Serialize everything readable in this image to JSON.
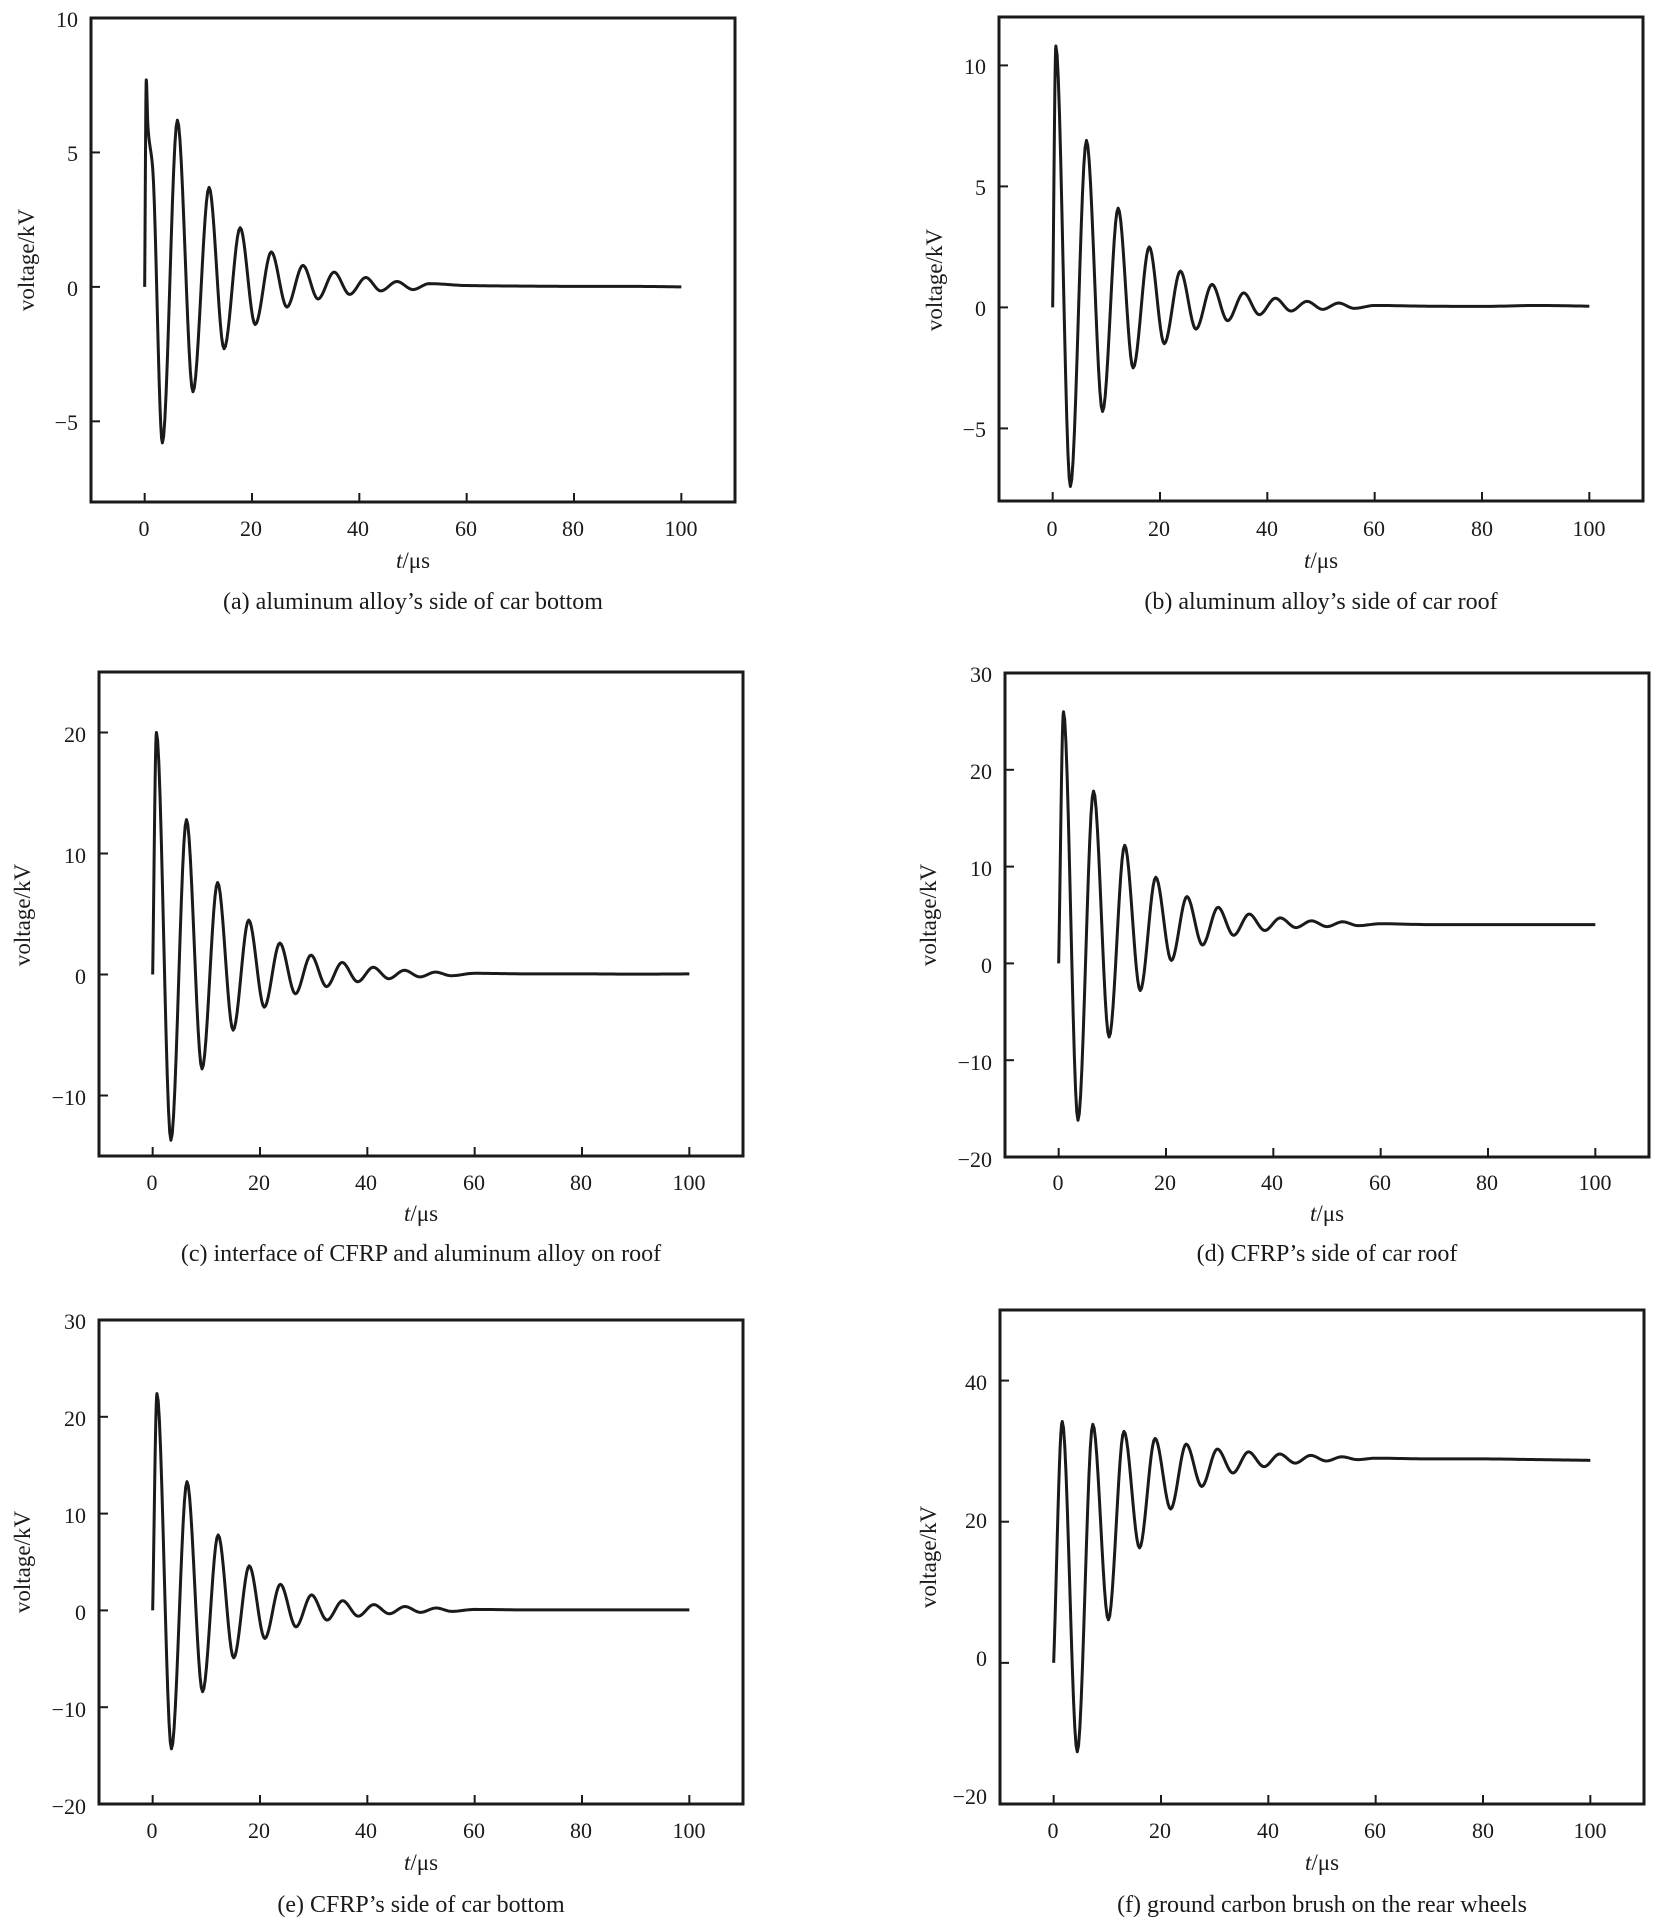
{
  "figure": {
    "panels": [
      {
        "id": "a",
        "caption": "(a) aluminum alloy’s side of car bottom",
        "ylabel": "voltage/kV",
        "xlabel_italic": "t",
        "xlabel_rest": "/μs",
        "xticks": [
          "0",
          "20",
          "40",
          "60",
          "80",
          "100"
        ],
        "yticks": [
          "10",
          "5",
          "0",
          "−5"
        ]
      },
      {
        "id": "b",
        "caption": "(b) aluminum alloy’s side of car roof",
        "ylabel": "voltage/kV",
        "xlabel_italic": "t",
        "xlabel_rest": "/μs",
        "xticks": [
          "0",
          "20",
          "40",
          "60",
          "80",
          "100"
        ],
        "yticks": [
          "10",
          "5",
          "0",
          "−5"
        ]
      },
      {
        "id": "c",
        "caption": "(c) interface of CFRP and aluminum alloy on roof",
        "ylabel": "voltage/kV",
        "xlabel_italic": "t",
        "xlabel_rest": "/μs",
        "xticks": [
          "0",
          "20",
          "40",
          "60",
          "80",
          "100"
        ],
        "yticks": [
          "20",
          "10",
          "0",
          "−10"
        ]
      },
      {
        "id": "d",
        "caption": "(d) CFRP’s side of car roof",
        "ylabel": "voltage/kV",
        "xlabel_italic": "t",
        "xlabel_rest": "/μs",
        "xticks": [
          "0",
          "20",
          "40",
          "60",
          "80",
          "100"
        ],
        "yticks": [
          "30",
          "20",
          "10",
          "0",
          "−10",
          "−20"
        ]
      },
      {
        "id": "e",
        "caption": "(e) CFRP’s side of car bottom",
        "ylabel": "voltage/kV",
        "xlabel_italic": "t",
        "xlabel_rest": "/μs",
        "xticks": [
          "0",
          "20",
          "40",
          "60",
          "80",
          "100"
        ],
        "yticks": [
          "30",
          "20",
          "10",
          "0",
          "−10",
          "−20"
        ]
      },
      {
        "id": "f",
        "caption": "(f) ground carbon brush on the rear wheels",
        "ylabel": "voltage/kV",
        "xlabel_italic": "t",
        "xlabel_rest": "/μs",
        "xticks": [
          "0",
          "20",
          "40",
          "60",
          "80",
          "100"
        ],
        "yticks": [
          "40",
          "20",
          "0",
          "−20"
        ]
      }
    ]
  },
  "chart_data": [
    {
      "type": "line",
      "caption": "(a) aluminum alloy’s side of car bottom",
      "xlabel": "t/μs",
      "ylabel": "voltage/kV",
      "xlim": [
        -10,
        110
      ],
      "ylim": [
        -8,
        10
      ],
      "xticks": [
        0,
        20,
        40,
        60,
        80,
        100
      ],
      "yticks": [
        -5,
        0,
        5,
        10
      ],
      "grid": false,
      "series": [
        {
          "color": "#1a1a1a",
          "x": [
            0,
            0.3,
            0.6,
            1.5,
            3.3,
            6.1,
            9.0,
            12.0,
            14.8,
            17.8,
            20.6,
            23.6,
            26.5,
            29.5,
            32.3,
            35.3,
            38.2,
            41.2,
            44.0,
            47.0,
            50.0,
            53.0,
            60.0,
            70.0,
            80.0,
            90.0,
            100.0
          ],
          "y": [
            0,
            7.7,
            6.0,
            4.4,
            -5.8,
            6.2,
            -3.9,
            3.7,
            -2.3,
            2.2,
            -1.4,
            1.3,
            -0.75,
            0.8,
            -0.45,
            0.55,
            -0.28,
            0.35,
            -0.15,
            0.2,
            -0.1,
            0.12,
            0.05,
            0.03,
            0.02,
            0.02,
            0
          ]
        }
      ]
    },
    {
      "type": "line",
      "caption": "(b) aluminum alloy’s side of car roof",
      "xlabel": "t/μs",
      "ylabel": "voltage/kV",
      "xlim": [
        -10,
        110
      ],
      "ylim": [
        -8,
        12
      ],
      "xticks": [
        0,
        20,
        40,
        60,
        80,
        100
      ],
      "yticks": [
        -5,
        0,
        5,
        10
      ],
      "grid": false,
      "series": [
        {
          "color": "#1a1a1a",
          "x": [
            0,
            0.6,
            3.3,
            6.3,
            9.3,
            12.2,
            15.0,
            18.0,
            20.8,
            23.8,
            26.7,
            29.7,
            32.6,
            35.6,
            38.5,
            41.5,
            44.4,
            47.4,
            50.3,
            53.3,
            56.2,
            60.0,
            70.0,
            80.0,
            90.0,
            100.0
          ],
          "y": [
            0,
            10.8,
            -7.4,
            6.9,
            -4.3,
            4.1,
            -2.5,
            2.5,
            -1.5,
            1.5,
            -0.9,
            0.95,
            -0.55,
            0.6,
            -0.3,
            0.38,
            -0.15,
            0.25,
            -0.08,
            0.18,
            -0.04,
            0.08,
            0.05,
            0.04,
            0.08,
            0.05
          ]
        }
      ]
    },
    {
      "type": "line",
      "caption": "(c) interface of CFRP and aluminum alloy on roof",
      "xlabel": "t/μs",
      "ylabel": "voltage/kV",
      "xlim": [
        -10,
        110
      ],
      "ylim": [
        -15,
        25
      ],
      "xticks": [
        0,
        20,
        40,
        60,
        80,
        100
      ],
      "yticks": [
        -10,
        0,
        10,
        20
      ],
      "grid": false,
      "series": [
        {
          "color": "#1a1a1a",
          "x": [
            0,
            0.7,
            3.4,
            6.3,
            9.2,
            12.1,
            15.0,
            17.9,
            20.8,
            23.7,
            26.6,
            29.5,
            32.4,
            35.3,
            38.2,
            41.1,
            44.0,
            46.9,
            49.8,
            52.7,
            55.6,
            60.0,
            70.0,
            80.0,
            90.0,
            100.0
          ],
          "y": [
            0,
            20.0,
            -13.7,
            12.8,
            -7.8,
            7.6,
            -4.6,
            4.5,
            -2.7,
            2.6,
            -1.6,
            1.6,
            -1.0,
            1.0,
            -0.6,
            0.6,
            -0.35,
            0.35,
            -0.2,
            0.2,
            -0.1,
            0.1,
            0.05,
            0.05,
            0.03,
            0.05
          ]
        }
      ]
    },
    {
      "type": "line",
      "caption": "(d) CFRP’s side of car roof",
      "xlabel": "t/μs",
      "ylabel": "voltage/kV",
      "xlim": [
        -10,
        110
      ],
      "ylim": [
        -20,
        30
      ],
      "xticks": [
        0,
        20,
        40,
        60,
        80,
        100
      ],
      "yticks": [
        -20,
        -10,
        0,
        10,
        20,
        30
      ],
      "grid": false,
      "series": [
        {
          "color": "#1a1a1a",
          "x": [
            0,
            0.9,
            3.6,
            6.5,
            9.4,
            12.3,
            15.2,
            18.1,
            21.0,
            23.9,
            26.8,
            29.7,
            32.6,
            35.5,
            38.4,
            41.3,
            44.2,
            47.1,
            50.0,
            52.9,
            55.8,
            60.0,
            70.0,
            80.0,
            90.0,
            100.0
          ],
          "y": [
            0,
            26.0,
            -16.2,
            17.8,
            -7.6,
            12.2,
            -2.8,
            8.9,
            0.3,
            6.9,
            1.9,
            5.8,
            2.9,
            5.1,
            3.4,
            4.7,
            3.7,
            4.4,
            3.8,
            4.3,
            3.9,
            4.1,
            4.0,
            4.0,
            4.0,
            4.0
          ]
        }
      ]
    },
    {
      "type": "line",
      "caption": "(e) CFRP’s side of car bottom",
      "xlabel": "t/μs",
      "ylabel": "voltage/kV",
      "xlim": [
        -10,
        110
      ],
      "ylim": [
        -20,
        30
      ],
      "xticks": [
        0,
        20,
        40,
        60,
        80,
        100
      ],
      "yticks": [
        -20,
        -10,
        0,
        10,
        20,
        30
      ],
      "grid": false,
      "series": [
        {
          "color": "#1a1a1a",
          "x": [
            0,
            0.8,
            3.5,
            6.4,
            9.3,
            12.2,
            15.1,
            18.0,
            20.9,
            23.8,
            26.7,
            29.6,
            32.5,
            35.4,
            38.3,
            41.2,
            44.1,
            47.0,
            49.9,
            52.8,
            55.7,
            60.0,
            70.0,
            80.0,
            90.0,
            100.0
          ],
          "y": [
            0,
            22.4,
            -14.3,
            13.3,
            -8.4,
            7.8,
            -4.9,
            4.6,
            -2.9,
            2.7,
            -1.7,
            1.6,
            -1.0,
            1.0,
            -0.6,
            0.6,
            -0.35,
            0.4,
            -0.2,
            0.25,
            -0.1,
            0.1,
            0.05,
            0.05,
            0.05,
            0.05
          ]
        }
      ]
    },
    {
      "type": "line",
      "caption": "(f) ground carbon brush on the rear wheels",
      "xlabel": "t/μs",
      "ylabel": "voltage/kV",
      "xlim": [
        -10,
        110
      ],
      "ylim": [
        -20,
        50
      ],
      "xticks": [
        0,
        20,
        40,
        60,
        80,
        100
      ],
      "yticks": [
        -20,
        0,
        20,
        40
      ],
      "grid": false,
      "series": [
        {
          "color": "#1a1a1a",
          "x": [
            0,
            1.6,
            4.4,
            7.3,
            10.2,
            13.1,
            16.0,
            18.9,
            21.8,
            24.7,
            27.6,
            30.5,
            33.4,
            36.3,
            39.2,
            42.1,
            45.0,
            47.9,
            50.8,
            53.7,
            56.6,
            60.0,
            70.0,
            80.0,
            90.0,
            100.0
          ],
          "y": [
            0,
            34.2,
            -12.6,
            33.8,
            6.1,
            32.8,
            16.3,
            31.8,
            21.8,
            31.0,
            25.0,
            30.3,
            26.9,
            29.9,
            27.8,
            29.6,
            28.3,
            29.4,
            28.6,
            29.2,
            28.8,
            29.0,
            28.9,
            28.9,
            28.8,
            28.7
          ]
        }
      ]
    }
  ]
}
